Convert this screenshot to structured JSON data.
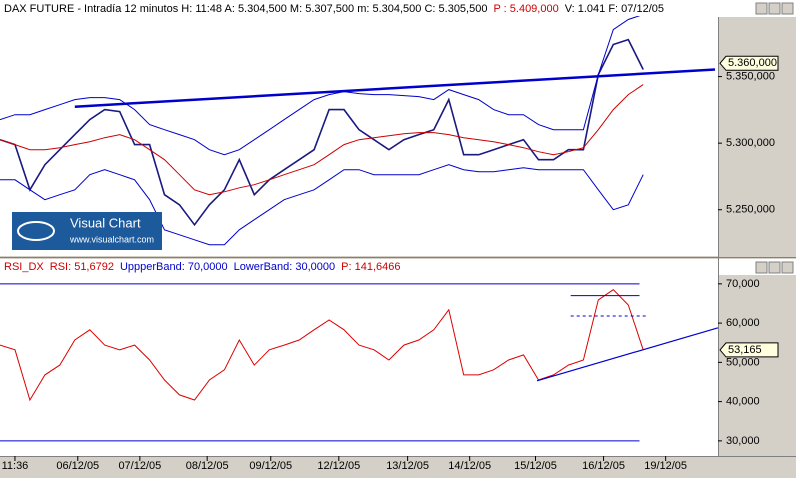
{
  "logo": {
    "title": "Visual Chart",
    "url": "www.visualchart.com"
  },
  "chart_data": [
    {
      "type": "line",
      "header": [
        {
          "text": "DAX FUTURE - Intradía 12 minutos  H: 11:48  A: 5.304,500  M: 5.307,500  m: 5.304,500  C: 5.305,500",
          "color": "#000000"
        },
        {
          "text": "P : 5.409,000",
          "color": "#cc0000"
        },
        {
          "text": "V: 1.041  F: 07/12/05",
          "color": "#000000"
        }
      ],
      "x": [
        0,
        2,
        4,
        6,
        8,
        10,
        12,
        14,
        16,
        18,
        20,
        22,
        24,
        26,
        28,
        30,
        32,
        34,
        36,
        38,
        40,
        42,
        44,
        46,
        48,
        50,
        52,
        54,
        56,
        58,
        60,
        62,
        64,
        66,
        68,
        70,
        72,
        74,
        76,
        78,
        80,
        82,
        84,
        86
      ],
      "xlim": [
        0,
        96
      ],
      "ylim": [
        5216000,
        5394000
      ],
      "yticks": [
        {
          "value": 5250000,
          "label": "5.250,000"
        },
        {
          "value": 5300000,
          "label": "5.300,000"
        },
        {
          "value": 5350000,
          "label": "5.350,000"
        }
      ],
      "series": [
        {
          "color": "#1a1a80",
          "width": 1.6,
          "values": [
            5302600,
            5298900,
            5265000,
            5283800,
            5295100,
            5306400,
            5317700,
            5325200,
            5323700,
            5298900,
            5298900,
            5261300,
            5253700,
            5238700,
            5253700,
            5265000,
            5287600,
            5261300,
            5272500,
            5280100,
            5287600,
            5295100,
            5325200,
            5325200,
            5310100,
            5302600,
            5295100,
            5302600,
            5306400,
            5310100,
            5332700,
            5291300,
            5291300,
            5295100,
            5298900,
            5302600,
            5287600,
            5287600,
            5295100,
            5295100,
            5351500,
            5374100,
            5377800,
            5355300
          ]
        },
        {
          "color": "#cc0000",
          "width": 1,
          "values": [
            5302600,
            5298900,
            5295100,
            5295100,
            5296600,
            5298900,
            5301100,
            5304100,
            5306400,
            5302600,
            5295100,
            5287600,
            5276300,
            5265000,
            5261300,
            5263500,
            5266500,
            5268800,
            5272500,
            5276300,
            5280100,
            5283800,
            5291300,
            5298900,
            5302600,
            5304100,
            5305600,
            5307100,
            5307900,
            5307900,
            5306400,
            5304100,
            5302600,
            5301100,
            5298900,
            5296600,
            5293600,
            5291300,
            5293600,
            5296600,
            5310100,
            5325200,
            5336500,
            5344000
          ]
        },
        {
          "color": "#0000cc",
          "width": 1,
          "values": [
            5317700,
            5321400,
            5321400,
            5325200,
            5328900,
            5332700,
            5334200,
            5334200,
            5332700,
            5325200,
            5313900,
            5310100,
            5306400,
            5302600,
            5295100,
            5291300,
            5295100,
            5302600,
            5310100,
            5317700,
            5325200,
            5332700,
            5336500,
            5338700,
            5337200,
            5336500,
            5336500,
            5335700,
            5335000,
            5332700,
            5340200,
            5336500,
            5332700,
            5325200,
            5321400,
            5321400,
            5313900,
            5310100,
            5310100,
            5310100,
            5351500,
            5385300,
            5392900,
            5396600
          ]
        },
        {
          "color": "#0000cc",
          "width": 1,
          "values": [
            5272500,
            5272500,
            5265000,
            5257500,
            5261300,
            5265000,
            5276300,
            5280100,
            5276300,
            5272500,
            5257500,
            5234900,
            5231200,
            5227400,
            5223700,
            5223700,
            5234900,
            5242500,
            5250000,
            5257500,
            5261300,
            5265000,
            5272500,
            5280100,
            5280100,
            5276300,
            5276300,
            5276300,
            5276300,
            5280100,
            5283800,
            5280100,
            5278600,
            5278600,
            5280100,
            5281600,
            5280100,
            5280100,
            5280100,
            5280100,
            5265000,
            5250000,
            5253700,
            5276300
          ]
        }
      ],
      "lines": [
        {
          "x": [
            10,
            95.6
          ],
          "y": [
            5327400,
            5355300
          ],
          "color": "#0000cc",
          "width": 2.5
        }
      ],
      "pointer": {
        "value": 5360000,
        "label": "5.360,000"
      }
    },
    {
      "type": "line",
      "header": [
        {
          "text": "RSI_DX",
          "color": "#cc0000"
        },
        {
          "text": "RSI: 51,6792",
          "color": "#cc0000"
        },
        {
          "text": "UppperBand: 70,0000",
          "color": "#0000cc"
        },
        {
          "text": "LowerBand: 30,0000",
          "color": "#0000cc"
        },
        {
          "text": "P: 141,6466",
          "color": "#cc0000"
        }
      ],
      "x": [
        0,
        2,
        4,
        6,
        8,
        10,
        12,
        14,
        16,
        18,
        20,
        22,
        24,
        26,
        28,
        30,
        32,
        34,
        36,
        38,
        40,
        42,
        44,
        46,
        48,
        50,
        52,
        54,
        56,
        58,
        60,
        62,
        64,
        66,
        68,
        70,
        72,
        74,
        76,
        78,
        80,
        82,
        84,
        86
      ],
      "xlim": [
        0,
        96
      ],
      "ylim": [
        26.4,
        72
      ],
      "yticks": [
        {
          "value": 30,
          "label": "30,000"
        },
        {
          "value": 40,
          "label": "40,000"
        },
        {
          "value": 50,
          "label": "50,000"
        },
        {
          "value": 60,
          "label": "60,000"
        },
        {
          "value": 70,
          "label": "70,000"
        }
      ],
      "xticks": [
        {
          "value": 2,
          "label": "11:36"
        },
        {
          "value": 10.4,
          "label": "06/12/05"
        },
        {
          "value": 18.7,
          "label": "07/12/05"
        },
        {
          "value": 27.7,
          "label": "08/12/05"
        },
        {
          "value": 36.2,
          "label": "09/12/05"
        },
        {
          "value": 45.3,
          "label": "12/12/05"
        },
        {
          "value": 54.5,
          "label": "13/12/05"
        },
        {
          "value": 62.8,
          "label": "14/12/05"
        },
        {
          "value": 71.6,
          "label": "15/12/05"
        },
        {
          "value": 80.7,
          "label": "16/12/05"
        },
        {
          "value": 89,
          "label": "19/12/05"
        }
      ],
      "series": [
        {
          "color": "#dd0000",
          "width": 1,
          "values": [
            54.4,
            53.2,
            40.4,
            46.8,
            49.3,
            55.7,
            58.3,
            54.4,
            53.2,
            54.4,
            50.6,
            45.5,
            41.7,
            40.4,
            45.5,
            48.1,
            55.7,
            49.3,
            53.2,
            54.4,
            55.7,
            58.3,
            60.8,
            58.3,
            54.4,
            53.2,
            50.6,
            54.4,
            55.7,
            58.3,
            63.4,
            46.8,
            46.8,
            48.1,
            50.6,
            51.9,
            45.5,
            46.8,
            49.3,
            50.6,
            65.9,
            68.5,
            64.6,
            53.2
          ]
        }
      ],
      "lines": [
        {
          "x": [
            0,
            85.5
          ],
          "y": [
            70,
            70
          ],
          "color": "#0000cc",
          "width": 1
        },
        {
          "x": [
            0,
            85.5
          ],
          "y": [
            30,
            30
          ],
          "color": "#0000cc",
          "width": 1
        },
        {
          "x": [
            76.3,
            85.5
          ],
          "y": [
            67,
            67
          ],
          "color": "#0000cc",
          "width": 1
        },
        {
          "x": [
            76.3,
            86.5
          ],
          "y": [
            61.8,
            61.8
          ],
          "color": "#0000cc",
          "width": 1,
          "dash": true
        },
        {
          "x": [
            71.8,
            96
          ],
          "y": [
            45.3,
            58.8
          ],
          "color": "#0000cc",
          "width": 1.2
        }
      ],
      "pointer": {
        "value": 53.165,
        "label": "53,165"
      }
    }
  ]
}
